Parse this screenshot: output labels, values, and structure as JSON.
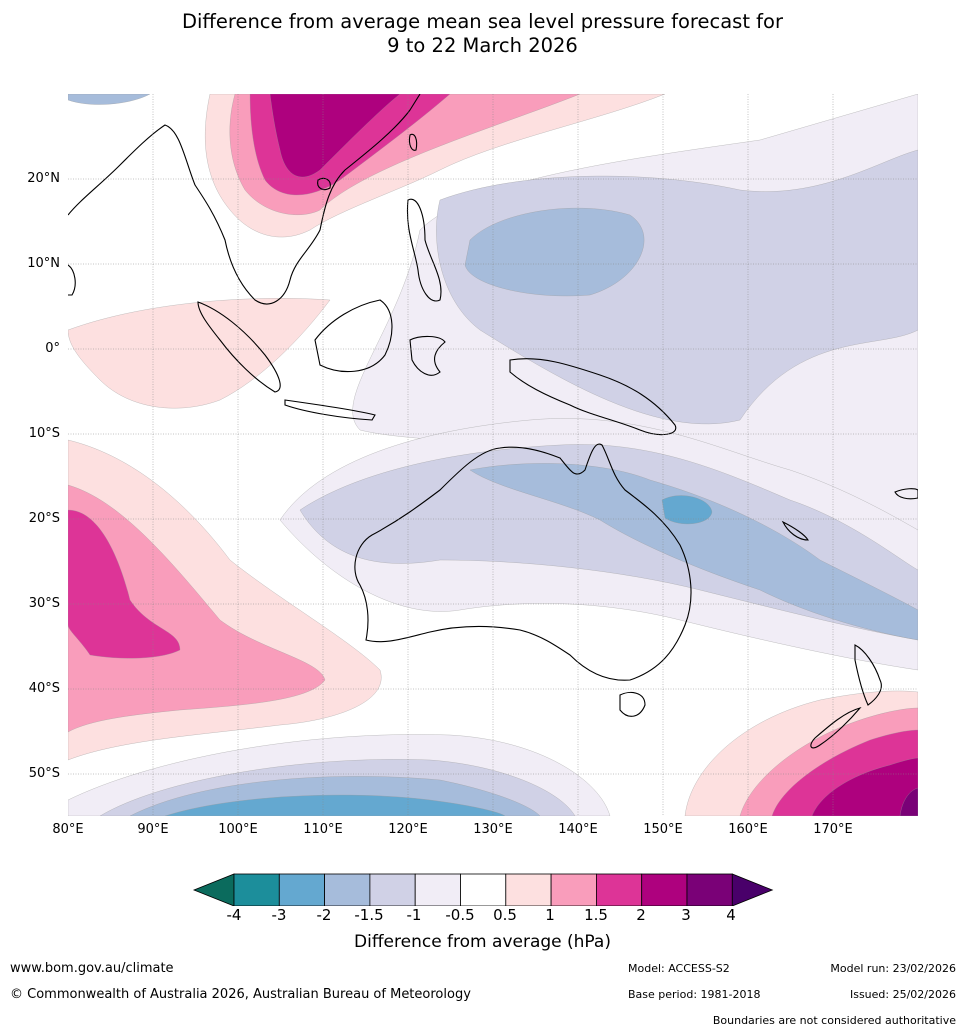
{
  "title": {
    "line1": "Difference from average mean sea level pressure forecast for",
    "line2": "9 to 22 March 2026"
  },
  "map": {
    "lat_labels": [
      "20°N",
      "10°N",
      "0°",
      "10°S",
      "20°S",
      "30°S",
      "40°S",
      "50°S"
    ],
    "lon_labels": [
      "80°E",
      "90°E",
      "100°E",
      "110°E",
      "120°E",
      "130°E",
      "140°E",
      "150°E",
      "160°E",
      "170°E"
    ],
    "lat_range": [
      -55,
      30
    ],
    "lon_range": [
      80,
      180
    ]
  },
  "legend": {
    "title": "Difference from average (hPa)",
    "ticks": [
      "-4",
      "-3",
      "-2",
      "-1.5",
      "-1",
      "-0.5",
      "0.5",
      "1",
      "1.5",
      "2",
      "3",
      "4"
    ],
    "colors": [
      "#0b6b5d",
      "#1c8e9b",
      "#64a8d0",
      "#a6bcdb",
      "#d0d1e6",
      "#f1edf6",
      "#ffffff",
      "#fde0e0",
      "#f99dbb",
      "#dd3497",
      "#ae017e",
      "#7a0177",
      "#49006a"
    ]
  },
  "footer": {
    "website": "www.bom.gov.au/climate",
    "copyright": "© Commonwealth of Australia 2026, Australian Bureau of Meteorology",
    "model": "Model: ACCESS-S2",
    "base_period": "Base period: 1981-2018",
    "model_run": "Model run: 23/02/2026",
    "issued": "Issued: 25/02/2026",
    "disclaimer": "Boundaries are not considered authoritative"
  }
}
